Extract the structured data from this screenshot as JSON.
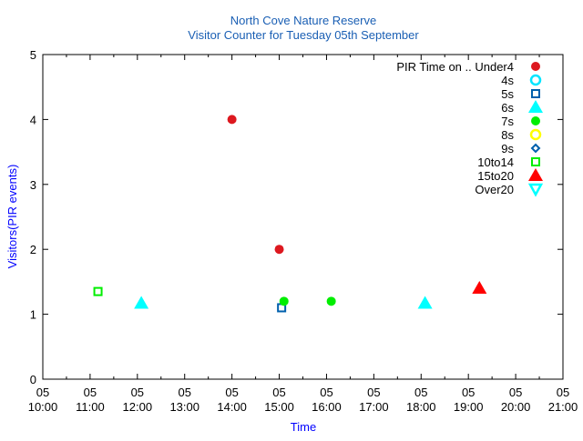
{
  "chart_data": {
    "type": "scatter",
    "title": "North Cove Nature Reserve",
    "subtitle": "Visitor Counter for Tuesday 05th September",
    "xlabel": "Time",
    "ylabel": "Visitors(PIR events)",
    "xlim": [
      "10:00",
      "21:00"
    ],
    "ylim": [
      0,
      5
    ],
    "x_tick_labels": [
      {
        "day": "05",
        "time": "10:00"
      },
      {
        "day": "05",
        "time": "11:00"
      },
      {
        "day": "05",
        "time": "12:00"
      },
      {
        "day": "05",
        "time": "13:00"
      },
      {
        "day": "05",
        "time": "14:00"
      },
      {
        "day": "05",
        "time": "15:00"
      },
      {
        "day": "05",
        "time": "16:00"
      },
      {
        "day": "05",
        "time": "17:00"
      },
      {
        "day": "05",
        "time": "18:00"
      },
      {
        "day": "05",
        "time": "19:00"
      },
      {
        "day": "05",
        "time": "20:00"
      },
      {
        "day": "05",
        "time": "21:00"
      }
    ],
    "y_ticks": [
      "0",
      "1",
      "2",
      "3",
      "4",
      "5"
    ],
    "legend_title": "PIR Time on ..",
    "legend_position": "top-right",
    "grid": false,
    "series": [
      {
        "name": "Under4",
        "marker": "circle-filled",
        "color": "#dd181f",
        "points": [
          [
            "14:00",
            4
          ],
          [
            "15:00",
            2
          ]
        ]
      },
      {
        "name": "4s",
        "marker": "circle-open",
        "color": "#00e5ff",
        "points": []
      },
      {
        "name": "5s",
        "marker": "square-open",
        "color": "#0060ad",
        "points": [
          [
            "15:03",
            1.1
          ]
        ]
      },
      {
        "name": "6s",
        "marker": "triangle-filled",
        "color": "#00ffff",
        "points": [
          [
            "12:05",
            1.17
          ],
          [
            "18:05",
            1.17
          ]
        ]
      },
      {
        "name": "7s",
        "marker": "circle-filled",
        "color": "#00ee00",
        "points": [
          [
            "15:06",
            1.2
          ],
          [
            "16:06",
            1.2
          ]
        ]
      },
      {
        "name": "8s",
        "marker": "circle-open",
        "color": "#ffff00",
        "points": []
      },
      {
        "name": "9s",
        "marker": "diamond-open",
        "color": "#0060ad",
        "points": []
      },
      {
        "name": "10to14",
        "marker": "square-open",
        "color": "#00ee00",
        "points": [
          [
            "11:10",
            1.35
          ]
        ]
      },
      {
        "name": "15to20",
        "marker": "triangle-filled",
        "color": "#ff0000",
        "points": [
          [
            "19:14",
            1.4
          ]
        ]
      },
      {
        "name": "Over20",
        "marker": "triangle-down-open",
        "color": "#00ffff",
        "points": []
      }
    ],
    "colors": {
      "title": "#1a5fb4",
      "axis_label": "#0000ff"
    }
  }
}
